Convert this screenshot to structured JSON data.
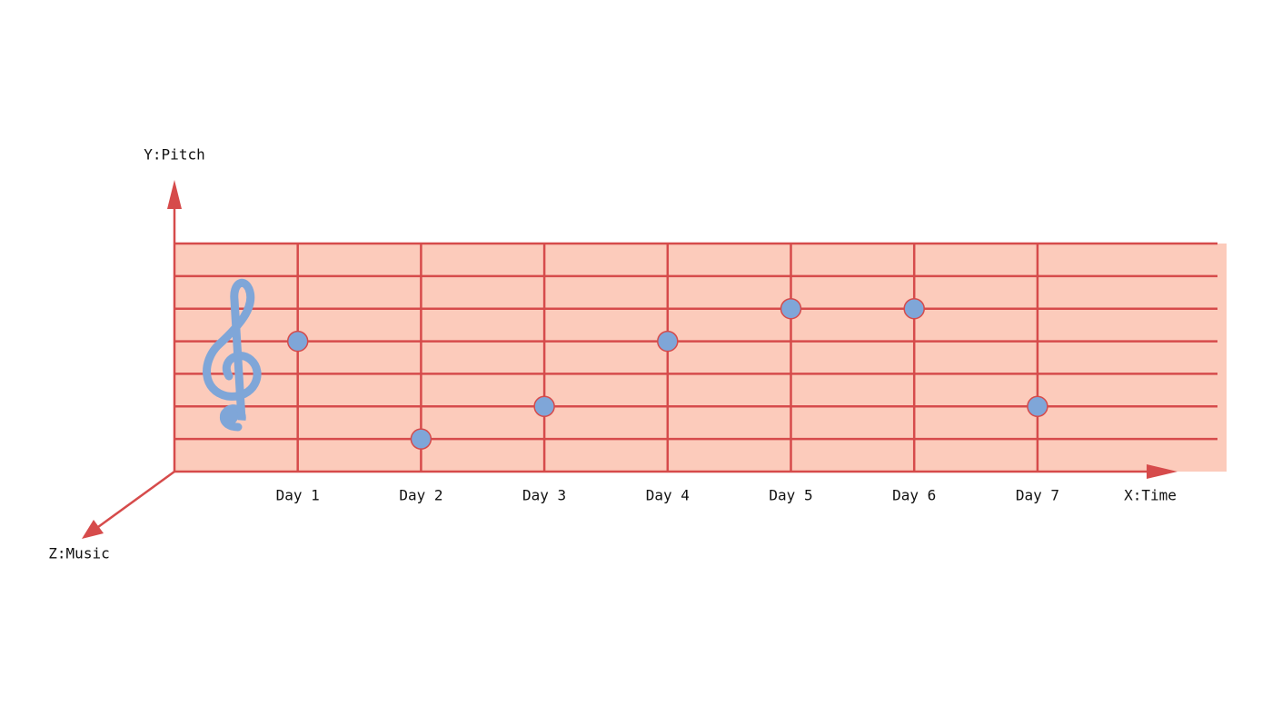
{
  "chart_data": {
    "type": "dot",
    "x_label": "X:Time",
    "y_label": "Y:Pitch",
    "z_label": "Z:Music",
    "categories": [
      "Day 1",
      "Day 2",
      "Day 3",
      "Day 4",
      "Day 5",
      "Day 6",
      "Day 7"
    ],
    "values": [
      4,
      1,
      2,
      4,
      5,
      5,
      2
    ],
    "ylim": [
      0,
      7
    ],
    "color": "#7fa6d8",
    "line_color": "#d64b4b",
    "staff_color": "#fccbbb"
  }
}
